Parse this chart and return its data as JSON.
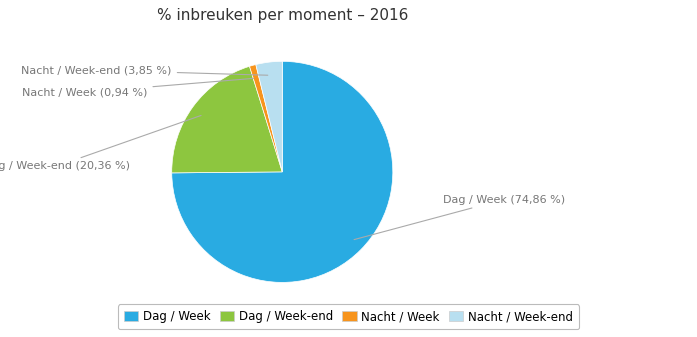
{
  "title": "% inbreuken per moment – 2016",
  "slices": [
    74.86,
    20.36,
    0.94,
    3.85
  ],
  "labels": [
    "Dag / Week",
    "Dag / Week-end",
    "Nacht / Week",
    "Nacht / Week-end"
  ],
  "colors": [
    "#29abe2",
    "#8dc63f",
    "#f7941d",
    "#b8dff0"
  ],
  "pct_labels": [
    "74,86 %",
    "20,36 %",
    "0,94 %",
    "3,85 %"
  ],
  "startangle": 90,
  "counterclock": false,
  "background_color": "#ffffff",
  "title_fontsize": 11,
  "legend_fontsize": 8.5,
  "label_fontsize": 8,
  "label_color": "#777777",
  "line_color": "#aaaaaa"
}
